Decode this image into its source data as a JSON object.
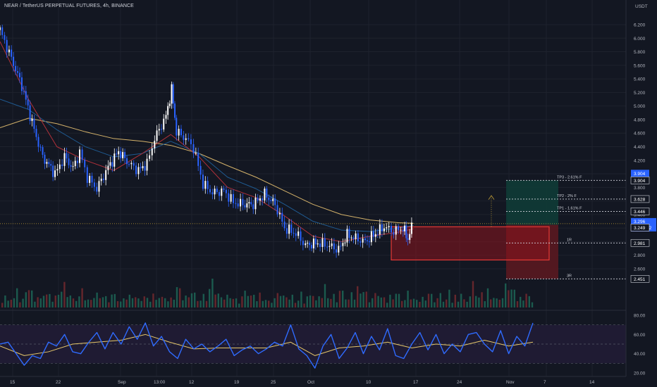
{
  "header": {
    "title": "NEAR / TetherUS PERPETUAL FUTURES, 4h, BINANCE"
  },
  "axis": {
    "unit": "USDT",
    "price_ticks": [
      "6.200",
      "6.000",
      "5.800",
      "5.600",
      "5.400",
      "5.200",
      "5.000",
      "4.800",
      "4.600",
      "4.400",
      "4.200",
      "4.000",
      "3.800",
      "3.600",
      "3.400",
      "3.200",
      "3.000",
      "2.800",
      "2.600"
    ],
    "rsi_ticks": [
      "80.00",
      "60.00",
      "40.00",
      "20.00"
    ],
    "x_ticks": [
      "15",
      "22",
      "Sep",
      "13:00",
      "12",
      "19",
      "25",
      "Oct",
      "10",
      "17",
      "24",
      "Nov",
      "7",
      "14"
    ]
  },
  "labels": {
    "tp3": "TP3 - 2.61% F",
    "tp2": "TP2 - 2% F",
    "tp1": "TP1 - 1.61% F",
    "r1": "1R",
    "r3": "3R",
    "tp3_tag": "3.904",
    "tp3_tag2": "3.904",
    "tp2_tag": "3.628",
    "tp1_tag": "3.446",
    "current_price": "3.296",
    "countdown": "01:24:32",
    "entry_tag": "3.249",
    "sl_tag": "2.981",
    "r3_tag": "2.451"
  },
  "colors": {
    "background": "#131722",
    "grid": "#1e222d",
    "candle_up": "#ffffff",
    "candle_down": "#2962ff",
    "ma_red": "#b2313a",
    "ma_blue": "#1f5a91",
    "ma_yellow": "#d4b26a",
    "rsi": "#2f6bff",
    "rsi_ma": "#e5c76b",
    "box": "#e53935",
    "tag_blue": "#2962ff"
  },
  "chart_data": [
    {
      "type": "line",
      "name": "price",
      "y_range": [
        2.4,
        6.35
      ],
      "x_range": [
        13,
        79
      ],
      "close_path": [
        [
          13,
          6.12
        ],
        [
          14.2,
          5.7
        ],
        [
          15.3,
          5.3
        ],
        [
          16.6,
          4.65
        ],
        [
          17.5,
          4.25
        ],
        [
          18.8,
          4.0
        ],
        [
          19.8,
          4.25
        ],
        [
          20.7,
          4.08
        ],
        [
          21.4,
          4.32
        ],
        [
          22.2,
          3.95
        ],
        [
          23.2,
          3.78
        ],
        [
          24.4,
          4.1
        ],
        [
          25.5,
          4.33
        ],
        [
          26.6,
          4.15
        ],
        [
          27.6,
          4.05
        ],
        [
          28.5,
          4.15
        ],
        [
          29.3,
          4.52
        ],
        [
          30.5,
          4.85
        ],
        [
          31.1,
          5.25
        ],
        [
          31.6,
          4.62
        ],
        [
          32.6,
          4.52
        ],
        [
          33.4,
          4.38
        ],
        [
          34.4,
          3.85
        ],
        [
          35.4,
          3.72
        ],
        [
          36.6,
          3.75
        ],
        [
          37.6,
          3.58
        ],
        [
          38.6,
          3.55
        ],
        [
          39.7,
          3.55
        ],
        [
          40.9,
          3.7
        ],
        [
          42.0,
          3.55
        ],
        [
          43.0,
          3.2
        ],
        [
          44.2,
          3.12
        ],
        [
          45.2,
          2.95
        ],
        [
          46.5,
          2.98
        ],
        [
          47.5,
          2.95
        ],
        [
          48.7,
          2.88
        ],
        [
          49.6,
          3.1
        ],
        [
          50.5,
          3.05
        ],
        [
          51.5,
          3.0
        ],
        [
          52.6,
          3.12
        ],
        [
          53.5,
          3.22
        ],
        [
          54.5,
          3.15
        ],
        [
          55.5,
          3.2
        ],
        [
          56.0,
          3.04
        ],
        [
          56.6,
          3.3
        ]
      ],
      "sma_red_path": [
        [
          13,
          5.95
        ],
        [
          16,
          5.1
        ],
        [
          19,
          4.4
        ],
        [
          22,
          4.2
        ],
        [
          25,
          4.05
        ],
        [
          28,
          4.3
        ],
        [
          31,
          4.58
        ],
        [
          34,
          4.25
        ],
        [
          37,
          3.8
        ],
        [
          40,
          3.65
        ],
        [
          43,
          3.38
        ],
        [
          46,
          3.08
        ],
        [
          49,
          3.0
        ],
        [
          52,
          3.08
        ],
        [
          55,
          3.14
        ],
        [
          56.6,
          3.19
        ]
      ],
      "sma_blue_path": [
        [
          13,
          5.1
        ],
        [
          16,
          4.95
        ],
        [
          19,
          4.65
        ],
        [
          22,
          4.4
        ],
        [
          25,
          4.25
        ],
        [
          28,
          4.3
        ],
        [
          31,
          4.48
        ],
        [
          34,
          4.3
        ],
        [
          37,
          3.95
        ],
        [
          40,
          3.78
        ],
        [
          43,
          3.55
        ],
        [
          46,
          3.3
        ],
        [
          49,
          3.17
        ],
        [
          52,
          3.15
        ],
        [
          55,
          3.2
        ],
        [
          56.6,
          3.24
        ]
      ],
      "sma_yellow_path": [
        [
          13,
          4.68
        ],
        [
          16,
          4.82
        ],
        [
          19,
          4.74
        ],
        [
          22,
          4.62
        ],
        [
          25,
          4.52
        ],
        [
          28,
          4.48
        ],
        [
          31,
          4.42
        ],
        [
          34,
          4.3
        ],
        [
          37,
          4.12
        ],
        [
          40,
          3.95
        ],
        [
          43,
          3.75
        ],
        [
          46,
          3.55
        ],
        [
          49,
          3.4
        ],
        [
          52,
          3.32
        ],
        [
          55,
          3.28
        ],
        [
          56.6,
          3.27
        ]
      ],
      "volume": [
        20,
        35,
        15,
        30,
        25,
        40,
        18,
        22,
        30,
        55,
        40,
        25,
        30,
        20,
        45,
        35,
        28,
        20,
        30,
        25,
        50,
        60,
        45,
        35,
        20,
        25,
        30,
        40,
        25,
        20,
        15,
        30,
        35,
        40,
        30,
        25,
        20,
        35,
        28,
        22,
        15,
        18,
        25,
        30,
        40,
        30,
        20,
        25,
        30,
        20
      ]
    },
    {
      "type": "line",
      "name": "rsi",
      "y_range": [
        10,
        85
      ],
      "rsi_path": [
        [
          13,
          50
        ],
        [
          14,
          52
        ],
        [
          15,
          40
        ],
        [
          16,
          28
        ],
        [
          17,
          38
        ],
        [
          18,
          35
        ],
        [
          19,
          52
        ],
        [
          20,
          48
        ],
        [
          21,
          60
        ],
        [
          22,
          42
        ],
        [
          23,
          40
        ],
        [
          24,
          52
        ],
        [
          25,
          62
        ],
        [
          26,
          45
        ],
        [
          27,
          62
        ],
        [
          28,
          50
        ],
        [
          29,
          68
        ],
        [
          30,
          55
        ],
        [
          31,
          72
        ],
        [
          32,
          48
        ],
        [
          33,
          58
        ],
        [
          34,
          42
        ],
        [
          35,
          35
        ],
        [
          36,
          55
        ],
        [
          37,
          45
        ],
        [
          38,
          50
        ],
        [
          39,
          42
        ],
        [
          40,
          48
        ],
        [
          41,
          55
        ],
        [
          42,
          38
        ],
        [
          43,
          44
        ],
        [
          44,
          48
        ],
        [
          45,
          40
        ],
        [
          46,
          45
        ],
        [
          47,
          52
        ],
        [
          48,
          48
        ],
        [
          49,
          70
        ],
        [
          50,
          45
        ],
        [
          51,
          38
        ],
        [
          52,
          25
        ],
        [
          53,
          48
        ],
        [
          54,
          60
        ],
        [
          55,
          35
        ],
        [
          56,
          46
        ],
        [
          57,
          62
        ],
        [
          58,
          40
        ],
        [
          59,
          58
        ],
        [
          60,
          44
        ],
        [
          61,
          66
        ],
        [
          62,
          38
        ],
        [
          63,
          35
        ],
        [
          64,
          50
        ],
        [
          65,
          62
        ],
        [
          66,
          44
        ],
        [
          67,
          60
        ],
        [
          68,
          40
        ],
        [
          69,
          50
        ],
        [
          70,
          42
        ],
        [
          71,
          60
        ],
        [
          72,
          62
        ],
        [
          73,
          50
        ],
        [
          74,
          42
        ],
        [
          75,
          64
        ],
        [
          76,
          40
        ],
        [
          77,
          58
        ],
        [
          78,
          48
        ],
        [
          79,
          72
        ]
      ],
      "rsi_ma_path": [
        [
          13,
          48
        ],
        [
          16,
          38
        ],
        [
          19,
          42
        ],
        [
          22,
          50
        ],
        [
          25,
          52
        ],
        [
          28,
          54
        ],
        [
          31,
          60
        ],
        [
          34,
          52
        ],
        [
          37,
          45
        ],
        [
          40,
          46
        ],
        [
          43,
          46
        ],
        [
          46,
          46
        ],
        [
          49,
          52
        ],
        [
          52,
          38
        ],
        [
          55,
          46
        ],
        [
          58,
          48
        ],
        [
          61,
          52
        ],
        [
          64,
          46
        ],
        [
          67,
          50
        ],
        [
          70,
          48
        ],
        [
          73,
          54
        ],
        [
          76,
          48
        ],
        [
          79,
          52
        ]
      ]
    }
  ]
}
